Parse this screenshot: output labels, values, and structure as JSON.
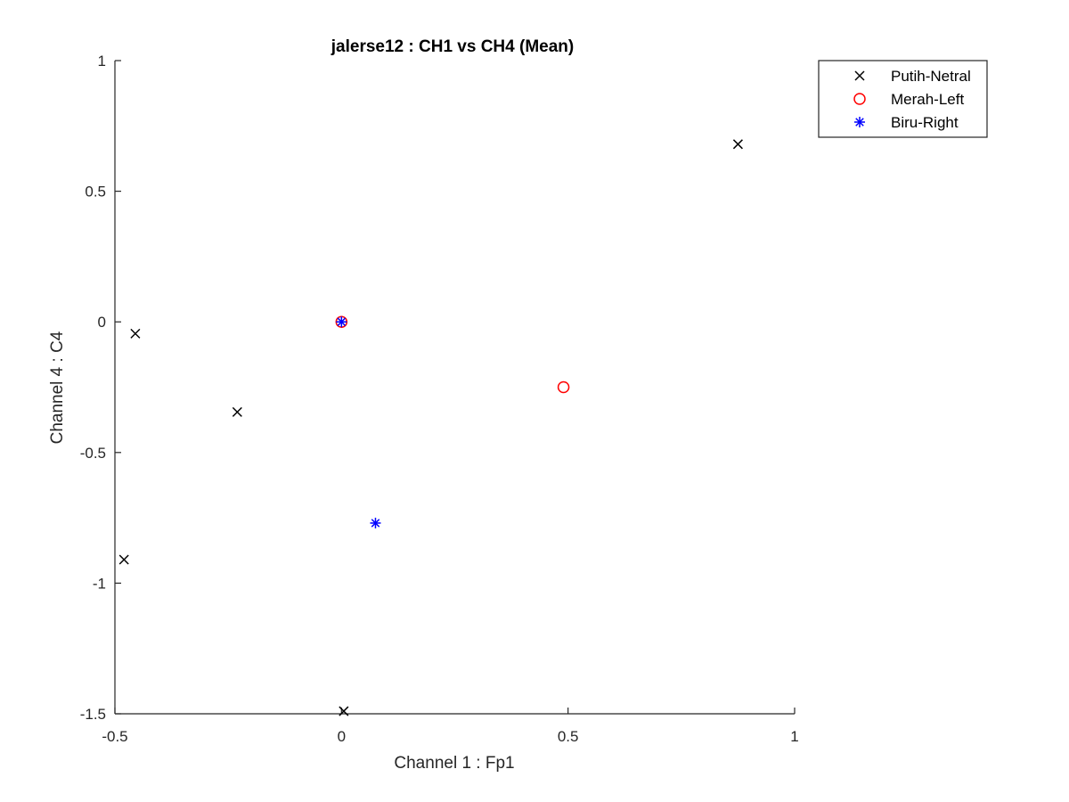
{
  "chart_data": {
    "type": "scatter",
    "title": "jalerse12 : CH1 vs CH4 (Mean)",
    "xlabel": "Channel 1 : Fp1",
    "ylabel": "Channel 4 : C4",
    "xlim": [
      -0.5,
      1
    ],
    "ylim": [
      -1.5,
      1
    ],
    "xticks": [
      -0.5,
      0,
      0.5,
      1
    ],
    "xtick_labels": [
      "-0.5",
      "0",
      "0.5",
      "1"
    ],
    "yticks": [
      -1.5,
      -1,
      -0.5,
      0,
      0.5,
      1
    ],
    "ytick_labels": [
      "-1.5",
      "-1",
      "-0.5",
      "0",
      "0.5",
      "1"
    ],
    "grid": false,
    "legend_position": "top-right-outside",
    "series": [
      {
        "name": "Putih-Netral",
        "marker": "x",
        "color": "#000000",
        "points": [
          {
            "x": 0.875,
            "y": 0.68
          },
          {
            "x": -0.455,
            "y": -0.045
          },
          {
            "x": -0.23,
            "y": -0.345
          },
          {
            "x": -0.48,
            "y": -0.91
          },
          {
            "x": 0.005,
            "y": -1.49
          }
        ]
      },
      {
        "name": "Merah-Left",
        "marker": "o",
        "color": "#ff0000",
        "points": [
          {
            "x": 0.0,
            "y": 0.0
          },
          {
            "x": 0.49,
            "y": -0.25
          }
        ]
      },
      {
        "name": "Biru-Right",
        "marker": "*",
        "color": "#0000ff",
        "points": [
          {
            "x": 0.0,
            "y": 0.0
          },
          {
            "x": 0.075,
            "y": -0.77
          }
        ]
      }
    ]
  }
}
